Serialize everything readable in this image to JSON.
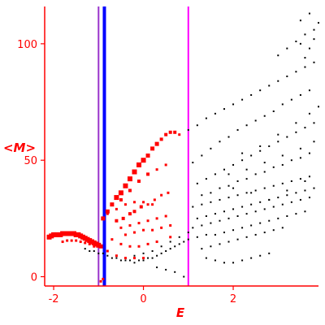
{
  "chart_data": {
    "type": "scatter",
    "xlabel": "E",
    "ylabel": "<M>",
    "xlim": [
      -2.2,
      3.9
    ],
    "ylim": [
      -4,
      116
    ],
    "x_ticks": [
      -2,
      0,
      2
    ],
    "y_ticks": [
      0,
      50,
      100
    ],
    "grid": false,
    "legend": "none",
    "colors": {
      "axis": "#ff0000",
      "red_series": "#ff0000",
      "black_series": "#000000",
      "magenta_line": "#ff00ff",
      "blue_line": "#0000ff",
      "purple_line": "#9933cc"
    },
    "vertical_lines": [
      {
        "x": -1.0,
        "color": "#9933cc",
        "width": 2
      },
      {
        "x": -0.87,
        "color": "#0000ff",
        "width": 4
      },
      {
        "x": 1.0,
        "color": "#ff00ff",
        "width": 2
      }
    ],
    "series": [
      {
        "color": "#ff0000",
        "marker": "square",
        "points": [
          [
            -2.1,
            17,
            6
          ],
          [
            -2.05,
            17.5,
            6
          ],
          [
            -2.0,
            18,
            6
          ],
          [
            -1.95,
            18,
            6
          ],
          [
            -1.9,
            18,
            6
          ],
          [
            -1.85,
            18,
            6
          ],
          [
            -1.8,
            18.5,
            6
          ],
          [
            -1.75,
            18.5,
            6
          ],
          [
            -1.7,
            18.5,
            6
          ],
          [
            -1.65,
            18.5,
            6
          ],
          [
            -1.6,
            18.5,
            6
          ],
          [
            -1.55,
            18.5,
            6
          ],
          [
            -1.5,
            18,
            6
          ],
          [
            -1.45,
            18,
            6
          ],
          [
            -1.4,
            17.5,
            6
          ],
          [
            -1.35,
            17,
            6
          ],
          [
            -1.3,
            16.5,
            6
          ],
          [
            -1.25,
            16,
            6
          ],
          [
            -1.2,
            15.5,
            6
          ],
          [
            -1.15,
            15,
            6
          ],
          [
            -1.1,
            14.5,
            6
          ],
          [
            -1.05,
            14,
            6
          ],
          [
            -1.0,
            13.5,
            6
          ],
          [
            -0.95,
            13,
            5
          ],
          [
            -1.8,
            15,
            3
          ],
          [
            -1.7,
            15.5,
            3
          ],
          [
            -1.6,
            15.5,
            3
          ],
          [
            -1.5,
            15.5,
            3
          ],
          [
            -1.4,
            15,
            3
          ],
          [
            -1.3,
            14.5,
            3
          ],
          [
            -1.2,
            14,
            3
          ],
          [
            -1.1,
            13,
            3
          ],
          [
            -0.9,
            25,
            5
          ],
          [
            -0.8,
            28,
            5
          ],
          [
            -0.7,
            31,
            5
          ],
          [
            -0.6,
            34,
            6
          ],
          [
            -0.5,
            36,
            6
          ],
          [
            -0.4,
            39,
            6
          ],
          [
            -0.3,
            42,
            6
          ],
          [
            -0.2,
            45,
            6
          ],
          [
            -0.1,
            48,
            6
          ],
          [
            0.0,
            50,
            6
          ],
          [
            0.1,
            52,
            5
          ],
          [
            0.2,
            55,
            5
          ],
          [
            0.3,
            57,
            5
          ],
          [
            0.4,
            59,
            4
          ],
          [
            0.5,
            61,
            4
          ],
          [
            0.6,
            62,
            4
          ],
          [
            0.7,
            62,
            4
          ],
          [
            0.8,
            61,
            3
          ],
          [
            -0.5,
            33,
            4
          ],
          [
            -0.3,
            37,
            4
          ],
          [
            -0.1,
            41,
            4
          ],
          [
            0.1,
            44,
            4
          ],
          [
            0.3,
            46,
            3
          ],
          [
            0.5,
            48,
            3
          ],
          [
            -0.6,
            24,
            4
          ],
          [
            -0.45,
            25,
            4
          ],
          [
            -0.3,
            27,
            4
          ],
          [
            -0.2,
            28,
            4
          ],
          [
            -0.05,
            30,
            4
          ],
          [
            0.1,
            31,
            3
          ],
          [
            0.25,
            33,
            3
          ],
          [
            0.4,
            35,
            3
          ],
          [
            0.55,
            36,
            3
          ],
          [
            -0.8,
            27,
            3
          ],
          [
            -0.6,
            29,
            3
          ],
          [
            -0.4,
            31,
            3
          ],
          [
            -0.2,
            32,
            3
          ],
          [
            0.0,
            32,
            3
          ],
          [
            0.2,
            31,
            3
          ],
          [
            -0.5,
            21,
            3
          ],
          [
            -0.3,
            22,
            3
          ],
          [
            -0.1,
            23,
            3
          ],
          [
            0.1,
            24,
            3
          ],
          [
            0.3,
            25,
            3
          ],
          [
            0.5,
            26,
            3
          ],
          [
            -0.4,
            18,
            3
          ],
          [
            -0.2,
            19,
            3
          ],
          [
            0.0,
            20,
            3
          ],
          [
            0.2,
            20,
            3
          ],
          [
            0.4,
            21,
            3
          ],
          [
            0.6,
            22,
            3
          ],
          [
            -0.7,
            16,
            3
          ],
          [
            -0.5,
            14,
            3
          ],
          [
            -0.3,
            13,
            3
          ],
          [
            -0.1,
            13,
            3
          ],
          [
            0.1,
            14,
            3
          ],
          [
            0.3,
            15,
            3
          ],
          [
            0.6,
            17,
            3
          ],
          [
            -0.8,
            11,
            3
          ],
          [
            -0.6,
            9,
            3
          ],
          [
            -0.4,
            8,
            3
          ],
          [
            -0.2,
            8,
            3
          ],
          [
            0.0,
            8,
            3
          ],
          [
            -0.9,
            -1,
            3
          ],
          [
            -0.95,
            -2,
            3
          ]
        ]
      },
      {
        "color": "#000000",
        "marker": "dot",
        "points": [
          [
            -1.3,
            12
          ],
          [
            -1.2,
            11
          ],
          [
            -1.1,
            11
          ],
          [
            -1.0,
            10
          ],
          [
            -0.9,
            10
          ],
          [
            -0.8,
            9
          ],
          [
            -0.7,
            8
          ],
          [
            -0.6,
            8
          ],
          [
            -0.5,
            7
          ],
          [
            -0.4,
            7
          ],
          [
            -0.3,
            7
          ],
          [
            -0.2,
            6
          ],
          [
            -0.1,
            7
          ],
          [
            0.0,
            7
          ],
          [
            0.1,
            8
          ],
          [
            0.2,
            8
          ],
          [
            0.3,
            9
          ],
          [
            0.4,
            10
          ],
          [
            0.5,
            11
          ],
          [
            0.6,
            12
          ],
          [
            0.7,
            13
          ],
          [
            0.8,
            14
          ],
          [
            0.9,
            15
          ],
          [
            1.0,
            16
          ],
          [
            -0.2,
            9
          ],
          [
            0.0,
            10
          ],
          [
            0.2,
            11
          ],
          [
            0.4,
            13
          ],
          [
            0.6,
            15
          ],
          [
            0.8,
            17
          ],
          [
            1.0,
            19
          ],
          [
            0.3,
            4
          ],
          [
            0.5,
            3
          ],
          [
            0.7,
            2
          ],
          [
            0.9,
            0
          ],
          [
            1.0,
            63
          ],
          [
            1.2,
            65
          ],
          [
            1.4,
            68
          ],
          [
            1.6,
            70
          ],
          [
            1.8,
            72
          ],
          [
            2.0,
            74
          ],
          [
            2.2,
            76
          ],
          [
            2.4,
            78
          ],
          [
            2.6,
            80
          ],
          [
            2.8,
            82
          ],
          [
            3.0,
            84
          ],
          [
            3.2,
            86
          ],
          [
            3.4,
            88
          ],
          [
            3.6,
            90
          ],
          [
            3.8,
            92
          ],
          [
            1.1,
            49
          ],
          [
            1.3,
            52
          ],
          [
            1.5,
            55
          ],
          [
            1.7,
            58
          ],
          [
            1.9,
            60
          ],
          [
            2.1,
            63
          ],
          [
            2.3,
            65
          ],
          [
            2.5,
            67
          ],
          [
            2.7,
            69
          ],
          [
            2.9,
            71
          ],
          [
            3.1,
            74
          ],
          [
            3.3,
            76
          ],
          [
            3.5,
            78
          ],
          [
            3.7,
            80
          ],
          [
            1.2,
            40
          ],
          [
            1.4,
            42
          ],
          [
            1.6,
            44
          ],
          [
            1.8,
            46
          ],
          [
            2.0,
            48
          ],
          [
            2.2,
            50
          ],
          [
            2.4,
            52
          ],
          [
            2.6,
            54
          ],
          [
            2.8,
            56
          ],
          [
            3.0,
            58
          ],
          [
            3.2,
            60
          ],
          [
            3.4,
            62
          ],
          [
            3.6,
            64
          ],
          [
            3.8,
            66
          ],
          [
            1.3,
            35
          ],
          [
            1.5,
            36
          ],
          [
            1.7,
            38
          ],
          [
            1.9,
            39
          ],
          [
            2.1,
            41
          ],
          [
            2.3,
            42
          ],
          [
            2.5,
            44
          ],
          [
            2.7,
            45
          ],
          [
            2.9,
            47
          ],
          [
            3.1,
            48
          ],
          [
            3.3,
            50
          ],
          [
            3.5,
            51
          ],
          [
            3.7,
            53
          ],
          [
            1.1,
            30
          ],
          [
            1.3,
            31
          ],
          [
            1.5,
            32
          ],
          [
            1.7,
            33
          ],
          [
            1.9,
            34
          ],
          [
            2.1,
            35
          ],
          [
            2.3,
            36
          ],
          [
            2.5,
            37
          ],
          [
            2.7,
            38
          ],
          [
            2.9,
            39
          ],
          [
            3.1,
            40
          ],
          [
            3.3,
            41
          ],
          [
            3.5,
            42
          ],
          [
            3.7,
            43
          ],
          [
            1.2,
            25
          ],
          [
            1.4,
            26
          ],
          [
            1.6,
            27
          ],
          [
            1.8,
            28
          ],
          [
            2.0,
            29
          ],
          [
            2.2,
            30
          ],
          [
            2.4,
            31
          ],
          [
            2.6,
            32
          ],
          [
            2.8,
            33
          ],
          [
            3.0,
            34
          ],
          [
            3.2,
            35
          ],
          [
            3.4,
            36
          ],
          [
            3.6,
            37
          ],
          [
            3.8,
            38
          ],
          [
            1.1,
            21
          ],
          [
            1.3,
            22
          ],
          [
            1.5,
            23
          ],
          [
            1.7,
            24
          ],
          [
            1.9,
            25
          ],
          [
            2.1,
            26
          ],
          [
            2.3,
            27
          ],
          [
            2.5,
            28
          ],
          [
            2.7,
            29
          ],
          [
            2.9,
            30
          ],
          [
            3.1,
            31
          ],
          [
            3.3,
            32
          ],
          [
            3.5,
            33
          ],
          [
            3.7,
            34
          ],
          [
            1.2,
            17
          ],
          [
            1.4,
            18
          ],
          [
            1.6,
            18
          ],
          [
            1.8,
            19
          ],
          [
            2.0,
            20
          ],
          [
            2.2,
            21
          ],
          [
            2.4,
            22
          ],
          [
            2.6,
            23
          ],
          [
            2.8,
            24
          ],
          [
            3.0,
            25
          ],
          [
            3.2,
            26
          ],
          [
            3.4,
            27
          ],
          [
            3.6,
            28
          ],
          [
            1.3,
            12
          ],
          [
            1.5,
            13
          ],
          [
            1.7,
            14
          ],
          [
            1.9,
            15
          ],
          [
            2.1,
            16
          ],
          [
            2.3,
            17
          ],
          [
            2.5,
            18
          ],
          [
            2.7,
            19
          ],
          [
            2.9,
            20
          ],
          [
            3.1,
            21
          ],
          [
            1.4,
            8
          ],
          [
            1.6,
            7
          ],
          [
            1.8,
            6
          ],
          [
            2.0,
            6
          ],
          [
            2.2,
            7
          ],
          [
            2.4,
            8
          ],
          [
            2.6,
            9
          ],
          [
            2.8,
            10
          ],
          [
            3.0,
            95
          ],
          [
            3.2,
            98
          ],
          [
            3.4,
            101
          ],
          [
            3.6,
            104
          ],
          [
            3.8,
            106
          ],
          [
            3.9,
            109
          ],
          [
            3.7,
            113
          ],
          [
            3.5,
            110
          ],
          [
            3.5,
            100
          ],
          [
            3.6,
            94
          ],
          [
            3.7,
            98
          ],
          [
            3.8,
            102
          ],
          [
            2.0,
            38
          ],
          [
            2.4,
            36
          ],
          [
            2.8,
            33
          ],
          [
            3.2,
            37
          ],
          [
            3.6,
            41
          ],
          [
            1.9,
            44
          ],
          [
            2.3,
            46
          ],
          [
            2.7,
            49
          ],
          [
            3.1,
            52
          ],
          [
            3.5,
            55
          ],
          [
            3.8,
            58
          ],
          [
            2.2,
            53
          ],
          [
            2.6,
            56
          ],
          [
            3.0,
            61
          ],
          [
            3.4,
            66
          ],
          [
            3.7,
            70
          ],
          [
            3.9,
            73
          ]
        ]
      }
    ]
  }
}
